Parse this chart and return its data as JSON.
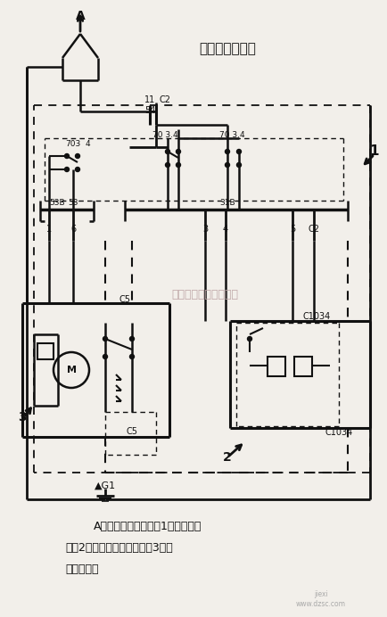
{
  "title": "前雨刷器电路图",
  "bg_color": "#f2efea",
  "line_color": "#111111",
  "dashed_color": "#111111",
  "text_color": "#111111",
  "watermark": "杭州将睽科技有限公司",
  "watermark_color": "#c0a8a8",
  "caption_line1": "A－至中央电气盒　　1－雨刷器开",
  "caption_line2": "关　2－间歇雨刷器继电器　3－雨",
  "caption_line3": "刷器继电器"
}
